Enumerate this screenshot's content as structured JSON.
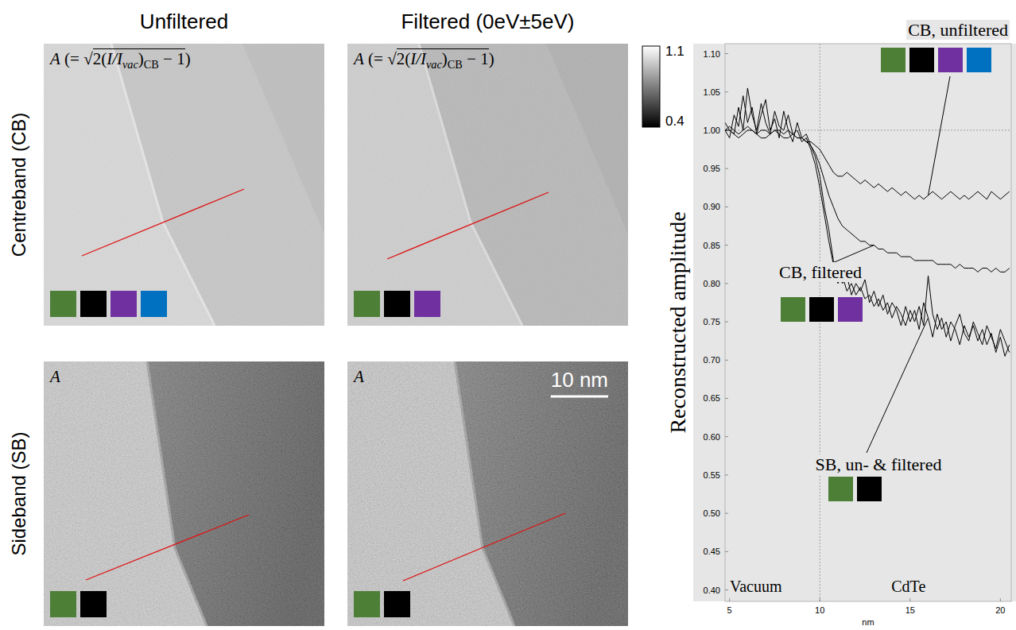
{
  "figure": {
    "column_titles": [
      "Unfiltered",
      "Filtered (0eV±5eV)"
    ],
    "row_titles": [
      "Centreband (CB)",
      "Sideband (SB)"
    ],
    "panels": [
      [
        {
          "label": [
            {
              "text": "A",
              "style": "italic",
              "overline": false
            },
            {
              "text": " (= ",
              "style": "plain",
              "overline": false
            },
            {
              "text": "√",
              "style": "plain",
              "overline": false
            },
            {
              "text": "2(",
              "style": "plain",
              "overline": true
            },
            {
              "text": "I/I",
              "style": "italic",
              "overline": true
            },
            {
              "text": "vac",
              "style": "sub-italic",
              "overline": true
            },
            {
              "text": ")",
              "style": "plain",
              "overline": true
            },
            {
              "text": "CB",
              "style": "sub",
              "overline": true
            },
            {
              "text": " − 1",
              "style": "plain",
              "overline": true
            },
            {
              "text": ")",
              "style": "plain",
              "overline": false
            }
          ],
          "colors": [
            "#4d7f37",
            "#000000",
            "#7030a0",
            "#0070c0"
          ]
        },
        {
          "label": [
            {
              "text": "A",
              "style": "italic",
              "overline": false
            },
            {
              "text": " (= ",
              "style": "plain",
              "overline": false
            },
            {
              "text": "√",
              "style": "plain",
              "overline": false
            },
            {
              "text": "2(",
              "style": "plain",
              "overline": true
            },
            {
              "text": "I/I",
              "style": "italic",
              "overline": true
            },
            {
              "text": "vac",
              "style": "sub-italic",
              "overline": true
            },
            {
              "text": ")",
              "style": "plain",
              "overline": true
            },
            {
              "text": "CB",
              "style": "sub",
              "overline": true
            },
            {
              "text": " − 1",
              "style": "plain",
              "overline": true
            },
            {
              "text": ")",
              "style": "plain",
              "overline": false
            }
          ],
          "colors": [
            "#4d7f37",
            "#000000",
            "#7030a0"
          ]
        }
      ],
      [
        {
          "label": [
            {
              "text": "A",
              "style": "italic",
              "overline": false
            }
          ],
          "colors": [
            "#4d7f37",
            "#000000"
          ]
        },
        {
          "label": [
            {
              "text": "A",
              "style": "italic",
              "overline": false
            }
          ],
          "colors": [
            "#4d7f37",
            "#000000"
          ],
          "scale_bar": {
            "label": "10 nm"
          }
        }
      ]
    ],
    "colorbar": {
      "min": 0.4,
      "max": 1.1,
      "ticks": [
        1.1,
        0.4
      ]
    }
  },
  "chart_data": {
    "type": "line",
    "ylabel": "Reconstructed amplitude",
    "xlabel": "nm",
    "region_labels": [
      "Vacuum",
      "CdTe"
    ],
    "x": [
      4.75,
      5,
      5.25,
      5.5,
      5.75,
      6,
      6.25,
      6.5,
      6.75,
      7,
      7.25,
      7.5,
      7.75,
      8,
      8.25,
      8.5,
      8.75,
      9,
      9.25,
      9.5,
      9.75,
      10,
      10.25,
      10.5,
      10.75,
      11,
      11.25,
      11.5,
      11.75,
      12,
      12.25,
      12.5,
      12.75,
      13,
      13.25,
      13.5,
      13.75,
      14,
      14.25,
      14.5,
      14.75,
      15,
      15.25,
      15.5,
      15.75,
      16,
      16.25,
      16.5,
      16.75,
      17,
      17.25,
      17.5,
      17.75,
      18,
      18.25,
      18.5,
      18.75,
      19,
      19.25,
      19.5,
      19.75,
      20,
      20.25,
      20.5
    ],
    "xlim": [
      4.75,
      20.6
    ],
    "xticks": [
      5,
      10,
      15,
      20
    ],
    "ylim": [
      0.385,
      1.113
    ],
    "yticks": [
      {
        "value": 0.4,
        "label": "0.40"
      },
      {
        "value": 0.45,
        "label": "0.45"
      },
      {
        "value": 0.5,
        "label": "0.50"
      },
      {
        "value": 0.55,
        "label": "0.55"
      },
      {
        "value": 0.6,
        "label": "0.60"
      },
      {
        "value": 0.65,
        "label": "0.65"
      },
      {
        "value": 0.7,
        "label": "0.70"
      },
      {
        "value": 0.75,
        "label": "0.75"
      },
      {
        "value": 0.8,
        "label": "0.80"
      },
      {
        "value": 0.85,
        "label": "0.85"
      },
      {
        "value": 0.9,
        "label": "0.90"
      },
      {
        "value": 0.95,
        "label": "0.95"
      },
      {
        "value": 1.0,
        "label": "1.00"
      },
      {
        "value": 1.05,
        "label": "1.05"
      },
      {
        "value": 1.1,
        "label": "1.10"
      }
    ],
    "grid": false,
    "hlines": [
      1.0
    ],
    "vlines": [
      10
    ],
    "series": [
      {
        "color": "#000000",
        "line_style": "solid",
        "values": [
          1.0,
          1.0,
          0.995,
          0.99,
          0.995,
          1.0,
          1.0,
          0.995,
          0.99,
          0.99,
          0.995,
          1.0,
          0.995,
          0.99,
          0.99,
          0.995,
          0.99,
          0.99,
          0.985,
          0.985,
          0.98,
          0.975,
          0.965,
          0.955,
          0.945,
          0.94,
          0.94,
          0.945,
          0.94,
          0.935,
          0.93,
          0.935,
          0.93,
          0.925,
          0.93,
          0.925,
          0.92,
          0.925,
          0.92,
          0.915,
          0.92,
          0.915,
          0.91,
          0.915,
          0.91,
          0.915,
          0.92,
          0.915,
          0.91,
          0.915,
          0.92,
          0.915,
          0.91,
          0.915,
          0.91,
          0.915,
          0.92,
          0.915,
          0.91,
          0.92,
          0.915,
          0.91,
          0.915,
          0.92
        ]
      },
      {
        "color": "#000000",
        "line_style": "solid",
        "values": [
          1.0,
          1.005,
          1.0,
          0.995,
          1.0,
          1.005,
          1.0,
          0.995,
          1.0,
          1.0,
          0.995,
          1.0,
          1.0,
          0.995,
          1.0,
          0.995,
          0.99,
          0.99,
          0.985,
          0.98,
          0.97,
          0.955,
          0.935,
          0.915,
          0.9,
          0.885,
          0.875,
          0.87,
          0.865,
          0.86,
          0.855,
          0.855,
          0.85,
          0.85,
          0.845,
          0.845,
          0.84,
          0.84,
          0.84,
          0.835,
          0.835,
          0.835,
          0.83,
          0.83,
          0.83,
          0.83,
          0.83,
          0.825,
          0.825,
          0.825,
          0.825,
          0.82,
          0.825,
          0.82,
          0.82,
          0.82,
          0.815,
          0.82,
          0.82,
          0.815,
          0.82,
          0.815,
          0.815,
          0.82
        ]
      },
      {
        "color": "#000000",
        "line_style": "solid",
        "values": [
          1.0,
          0.99,
          1.02,
          1.005,
          1.045,
          1.01,
          1.03,
          0.995,
          1.02,
          1.04,
          1.0,
          1.015,
          0.99,
          1.025,
          1.0,
          0.985,
          1.01,
          0.99,
          0.995,
          0.98,
          0.965,
          0.94,
          0.9,
          0.87,
          0.83,
          0.815,
          0.8,
          0.81,
          0.785,
          0.8,
          0.79,
          0.805,
          0.775,
          0.79,
          0.77,
          0.785,
          0.76,
          0.775,
          0.765,
          0.745,
          0.77,
          0.75,
          0.765,
          0.74,
          0.775,
          0.755,
          0.73,
          0.76,
          0.74,
          0.75,
          0.725,
          0.745,
          0.76,
          0.735,
          0.725,
          0.75,
          0.735,
          0.72,
          0.745,
          0.73,
          0.715,
          0.74,
          0.725,
          0.71
        ]
      },
      {
        "color": "#000000",
        "line_style": "solid",
        "values": [
          1.01,
          1.0,
          0.995,
          1.03,
          1.0,
          1.055,
          1.02,
          1.0,
          1.035,
          1.01,
          0.995,
          1.025,
          1.005,
          1.0,
          1.02,
          0.995,
          1.0,
          0.985,
          0.99,
          0.975,
          0.955,
          0.925,
          0.89,
          0.855,
          0.825,
          0.8,
          0.81,
          0.79,
          0.8,
          0.785,
          0.795,
          0.78,
          0.785,
          0.77,
          0.78,
          0.765,
          0.775,
          0.755,
          0.77,
          0.76,
          0.745,
          0.765,
          0.75,
          0.77,
          0.745,
          0.81,
          0.76,
          0.74,
          0.755,
          0.73,
          0.75,
          0.74,
          0.72,
          0.745,
          0.73,
          0.745,
          0.725,
          0.74,
          0.72,
          0.735,
          0.71,
          0.73,
          0.705,
          0.72
        ]
      }
    ],
    "annotations": [
      {
        "text": "CB, unfiltered",
        "colors": [
          "#4d7f37",
          "#000000",
          "#7030a0",
          "#0070c0"
        ]
      },
      {
        "text": "CB, filtered",
        "colors": [
          "#4d7f37",
          "#000000",
          "#7030a0"
        ]
      },
      {
        "text": "SB, un- & filtered",
        "colors": [
          "#4d7f37",
          "#000000"
        ]
      }
    ]
  }
}
